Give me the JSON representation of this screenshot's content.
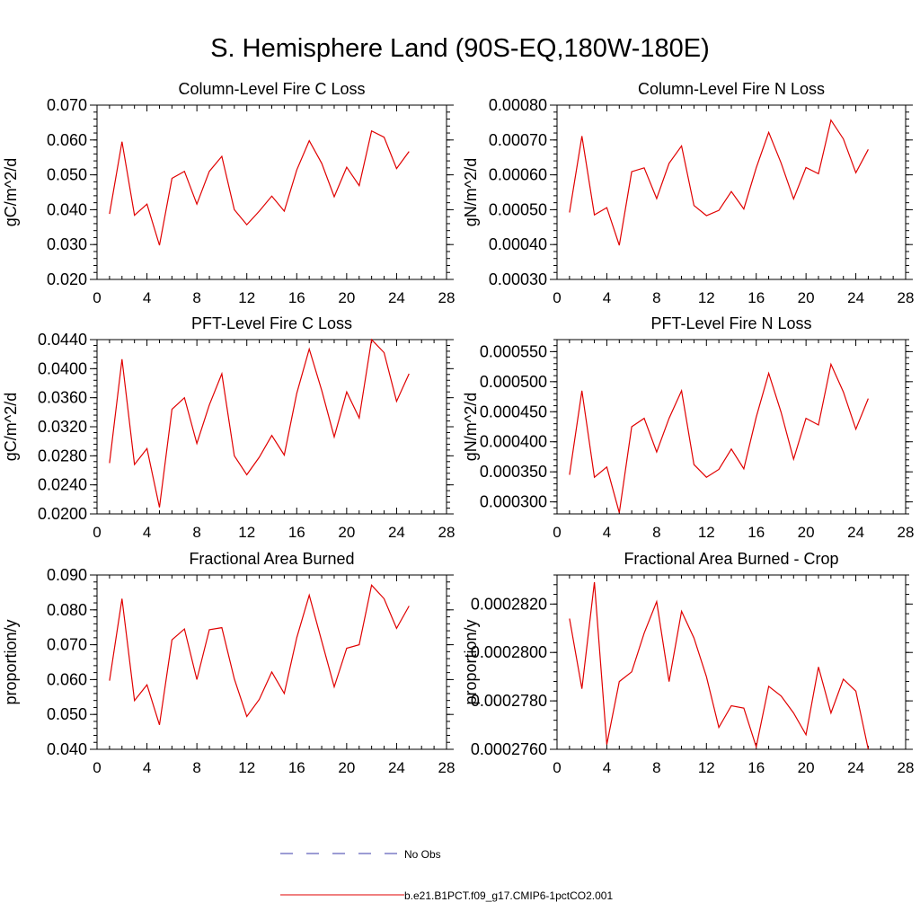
{
  "page_title": "S. Hemisphere Land (90S-EQ,180W-180E)",
  "legend": {
    "entries": [
      {
        "label": "No Obs",
        "color": "#3a3aa8",
        "dash": true
      },
      {
        "label": "b.e21.B1PCT.f09_g17.CMIP6-1pctCO2.001",
        "color": "#e00000",
        "dash": false
      }
    ]
  },
  "chart_data": [
    {
      "type": "line",
      "title": "Column-Level Fire C Loss",
      "ylabel": "gC/m^2/d",
      "xlim": [
        0,
        28
      ],
      "ylim": [
        0.02,
        0.07
      ],
      "x_ticks": [
        "0",
        "4",
        "8",
        "12",
        "16",
        "20",
        "24",
        "28"
      ],
      "y_ticks": [
        "0.020",
        "0.030",
        "0.040",
        "0.050",
        "0.060",
        "0.070"
      ],
      "x": [
        1,
        2,
        3,
        4,
        5,
        6,
        7,
        8,
        9,
        10,
        11,
        12,
        13,
        14,
        15,
        16,
        17,
        18,
        19,
        20,
        21,
        22,
        23,
        24,
        25
      ],
      "series": [
        {
          "color": "#e00000",
          "values": [
            0.0388,
            0.0595,
            0.0384,
            0.0416,
            0.0298,
            0.049,
            0.051,
            0.0416,
            0.051,
            0.0553,
            0.04,
            0.0357,
            0.0396,
            0.0439,
            0.0396,
            0.0514,
            0.0598,
            0.0533,
            0.0437,
            0.0522,
            0.0469,
            0.0626,
            0.0608,
            0.0518,
            0.0567
          ]
        }
      ]
    },
    {
      "type": "line",
      "title": "Column-Level Fire N Loss",
      "ylabel": "gN/m^2/d",
      "xlim": [
        0,
        28
      ],
      "ylim": [
        0.0003,
        0.0008
      ],
      "x_ticks": [
        "0",
        "4",
        "8",
        "12",
        "16",
        "20",
        "24",
        "28"
      ],
      "y_ticks": [
        "0.00030",
        "0.00040",
        "0.00050",
        "0.00060",
        "0.00070",
        "0.00080"
      ],
      "x": [
        1,
        2,
        3,
        4,
        5,
        6,
        7,
        8,
        9,
        10,
        11,
        12,
        13,
        14,
        15,
        16,
        17,
        18,
        19,
        20,
        21,
        22,
        23,
        24,
        25
      ],
      "series": [
        {
          "color": "#e00000",
          "values": [
            0.000492,
            0.000711,
            0.000485,
            0.000506,
            0.000398,
            0.000609,
            0.00062,
            0.000532,
            0.000633,
            0.000683,
            0.000512,
            0.000483,
            0.000498,
            0.000552,
            0.000502,
            0.00062,
            0.000722,
            0.000634,
            0.000531,
            0.000621,
            0.000603,
            0.000757,
            0.000703,
            0.000606,
            0.000673
          ]
        }
      ]
    },
    {
      "type": "line",
      "title": "PFT-Level Fire C Loss",
      "ylabel": "gC/m^2/d",
      "xlim": [
        0,
        28
      ],
      "ylim": [
        0.02,
        0.044
      ],
      "x_ticks": [
        "0",
        "4",
        "8",
        "12",
        "16",
        "20",
        "24",
        "28"
      ],
      "y_ticks": [
        "0.0200",
        "0.0240",
        "0.0280",
        "0.0320",
        "0.0360",
        "0.0400",
        "0.0440"
      ],
      "x": [
        1,
        2,
        3,
        4,
        5,
        6,
        7,
        8,
        9,
        10,
        11,
        12,
        13,
        14,
        15,
        16,
        17,
        18,
        19,
        20,
        21,
        22,
        23,
        24,
        25
      ],
      "series": [
        {
          "color": "#e00000",
          "values": [
            0.027,
            0.0413,
            0.0268,
            0.029,
            0.0209,
            0.0344,
            0.036,
            0.0297,
            0.035,
            0.0393,
            0.028,
            0.0254,
            0.0278,
            0.0308,
            0.0281,
            0.0366,
            0.0427,
            0.037,
            0.0306,
            0.0368,
            0.0332,
            0.044,
            0.0422,
            0.0355,
            0.0393
          ]
        }
      ]
    },
    {
      "type": "line",
      "title": "PFT-Level Fire N Loss",
      "ylabel": "gN/m^2/d",
      "xlim": [
        0,
        28
      ],
      "ylim": [
        0.00028,
        0.00057
      ],
      "x_ticks": [
        "0",
        "4",
        "8",
        "12",
        "16",
        "20",
        "24",
        "28"
      ],
      "y_ticks": [
        "0.000300",
        "0.000350",
        "0.000400",
        "0.000450",
        "0.000500",
        "0.000550"
      ],
      "x": [
        1,
        2,
        3,
        4,
        5,
        6,
        7,
        8,
        9,
        10,
        11,
        12,
        13,
        14,
        15,
        16,
        17,
        18,
        19,
        20,
        21,
        22,
        23,
        24,
        25
      ],
      "series": [
        {
          "color": "#e00000",
          "values": [
            0.000345,
            0.000485,
            0.000341,
            0.000358,
            0.000282,
            0.000425,
            0.000439,
            0.000383,
            0.000439,
            0.000485,
            0.000362,
            0.000341,
            0.000354,
            0.000388,
            0.000355,
            0.000441,
            0.000514,
            0.000449,
            0.000371,
            0.000439,
            0.000428,
            0.000529,
            0.000483,
            0.000421,
            0.000472
          ]
        }
      ]
    },
    {
      "type": "line",
      "title": "Fractional Area Burned",
      "ylabel": "proportion/y",
      "xlim": [
        0,
        28
      ],
      "ylim": [
        0.04,
        0.09
      ],
      "x_ticks": [
        "0",
        "4",
        "8",
        "12",
        "16",
        "20",
        "24",
        "28"
      ],
      "y_ticks": [
        "0.040",
        "0.050",
        "0.060",
        "0.070",
        "0.080",
        "0.090"
      ],
      "x": [
        1,
        2,
        3,
        4,
        5,
        6,
        7,
        8,
        9,
        10,
        11,
        12,
        13,
        14,
        15,
        16,
        17,
        18,
        19,
        20,
        21,
        22,
        23,
        24,
        25
      ],
      "series": [
        {
          "color": "#e00000",
          "values": [
            0.0597,
            0.0832,
            0.054,
            0.0585,
            0.047,
            0.0714,
            0.0745,
            0.06,
            0.0743,
            0.0749,
            0.0602,
            0.0494,
            0.0543,
            0.0622,
            0.056,
            0.072,
            0.0842,
            0.071,
            0.0579,
            0.069,
            0.07,
            0.0871,
            0.0832,
            0.0747,
            0.0811
          ]
        }
      ]
    },
    {
      "type": "line",
      "title": "Fractional Area Burned - Crop",
      "ylabel": "proportion/y",
      "xlim": [
        0,
        28
      ],
      "ylim": [
        0.000276,
        0.0002832
      ],
      "x_ticks": [
        "0",
        "4",
        "8",
        "12",
        "16",
        "20",
        "24",
        "28"
      ],
      "y_ticks": [
        "0.0002760",
        "0.0002780",
        "0.0002800",
        "0.0002820"
      ],
      "x": [
        1,
        2,
        3,
        4,
        5,
        6,
        7,
        8,
        9,
        10,
        11,
        12,
        13,
        14,
        15,
        16,
        17,
        18,
        19,
        20,
        21,
        22,
        23,
        24,
        25
      ],
      "series": [
        {
          "color": "#e00000",
          "values": [
            0.0002814,
            0.0002785,
            0.0002829,
            0.0002762,
            0.0002788,
            0.0002792,
            0.0002808,
            0.0002821,
            0.0002788,
            0.0002817,
            0.0002806,
            0.000279,
            0.0002769,
            0.0002778,
            0.0002777,
            0.0002761,
            0.0002786,
            0.0002782,
            0.0002775,
            0.0002766,
            0.0002794,
            0.0002775,
            0.0002789,
            0.0002784,
            0.000276
          ]
        }
      ]
    }
  ]
}
